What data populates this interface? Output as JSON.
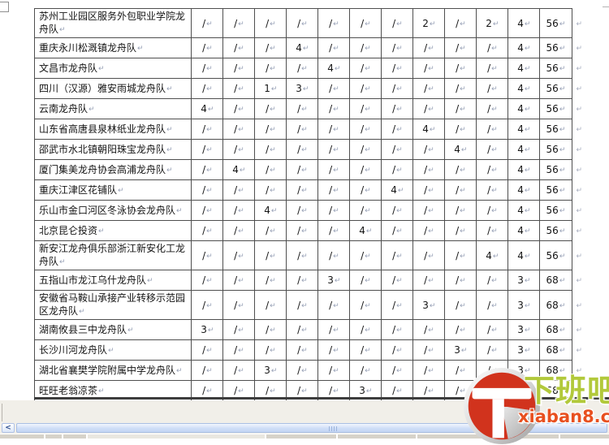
{
  "table": {
    "rows": [
      {
        "name": "苏州工业园区服务外包职业学院龙舟队",
        "values": [
          "/",
          "/",
          "/",
          "/",
          "/",
          "/",
          "/",
          "2",
          "/",
          "2",
          "4",
          "56"
        ]
      },
      {
        "name": "重庆永川松溉镇龙舟队",
        "values": [
          "/",
          "/",
          "/",
          "4",
          "/",
          "/",
          "/",
          "/",
          "/",
          "/",
          "4",
          "56"
        ]
      },
      {
        "name": "文昌市龙舟队",
        "values": [
          "/",
          "/",
          "/",
          "/",
          "4",
          "/",
          "/",
          "/",
          "/",
          "/",
          "4",
          "56"
        ]
      },
      {
        "name": "四川（汉源）雅安雨城龙舟队",
        "values": [
          "/",
          "/",
          "1",
          "3",
          "/",
          "/",
          "/",
          "/",
          "/",
          "/",
          "4",
          "56"
        ]
      },
      {
        "name": "云南龙舟队",
        "values": [
          "4",
          "/",
          "/",
          "/",
          "/",
          "/",
          "/",
          "/",
          "/",
          "/",
          "4",
          "56"
        ]
      },
      {
        "name": "山东省高唐县泉林纸业龙舟队",
        "values": [
          "/",
          "/",
          "/",
          "/",
          "/",
          "/",
          "/",
          "4",
          "/",
          "/",
          "4",
          "56"
        ]
      },
      {
        "name": "邵武市水北镇朝阳珠宝龙舟队",
        "values": [
          "/",
          "/",
          "/",
          "/",
          "/",
          "/",
          "/",
          "/",
          "4",
          "/",
          "4",
          "56"
        ]
      },
      {
        "name": "厦门集美龙舟协会高浦龙舟队",
        "values": [
          "/",
          "4",
          "/",
          "/",
          "/",
          "/",
          "/",
          "/",
          "/",
          "/",
          "4",
          "56"
        ]
      },
      {
        "name": "重庆江津区花铺队",
        "values": [
          "/",
          "/",
          "/",
          "/",
          "/",
          "/",
          "4",
          "/",
          "/",
          "/",
          "4",
          "56"
        ]
      },
      {
        "name": "乐山市金口河区冬泳协会龙舟队",
        "values": [
          "/",
          "/",
          "4",
          "/",
          "/",
          "/",
          "/",
          "/",
          "/",
          "/",
          "4",
          "56"
        ]
      },
      {
        "name": "北京昆仑投资",
        "values": [
          "/",
          "/",
          "/",
          "/",
          "/",
          "4",
          "/",
          "/",
          "/",
          "/",
          "4",
          "56"
        ]
      },
      {
        "name": "新安江龙舟俱乐部浙江新安化工龙舟队",
        "values": [
          "/",
          "/",
          "/",
          "/",
          "/",
          "/",
          "/",
          "/",
          "/",
          "4",
          "4",
          "56"
        ]
      },
      {
        "name": "五指山市龙江乌什龙舟队",
        "values": [
          "/",
          "/",
          "/",
          "/",
          "3",
          "/",
          "/",
          "/",
          "/",
          "/",
          "3",
          "68"
        ]
      },
      {
        "name": "安徽省马鞍山承接产业转移示范园区龙舟队",
        "values": [
          "/",
          "/",
          "/",
          "/",
          "/",
          "/",
          "/",
          "3",
          "/",
          "/",
          "3",
          "68"
        ]
      },
      {
        "name": "湖南攸县三中龙舟队",
        "values": [
          "3",
          "/",
          "/",
          "/",
          "/",
          "/",
          "/",
          "/",
          "/",
          "/",
          "3",
          "68"
        ]
      },
      {
        "name": "长沙川河龙舟队",
        "values": [
          "/",
          "/",
          "/",
          "/",
          "/",
          "/",
          "/",
          "/",
          "3",
          "/",
          "3",
          "68"
        ]
      },
      {
        "name": "湖北省襄樊学院附属中学龙舟队",
        "values": [
          "/",
          "/",
          "3",
          "/",
          "/",
          "/",
          "/",
          "/",
          "/",
          "/",
          "3",
          "68"
        ]
      },
      {
        "name": "旺旺老翁凉茶",
        "values": [
          "/",
          "/",
          "/",
          "/",
          "/",
          "3",
          "/",
          "/",
          "/",
          "/",
          "3",
          "68"
        ]
      }
    ]
  },
  "marks": {
    "cell_end": "↵",
    "row_end": "↵"
  },
  "scrollbar": {
    "left_arrow": "<"
  },
  "watermark": {
    "title": "下班吧",
    "url": "xiaban8.com",
    "title_color": "#b2c93b",
    "url_color": "#e8501f",
    "logo_red": "#d1331d"
  }
}
